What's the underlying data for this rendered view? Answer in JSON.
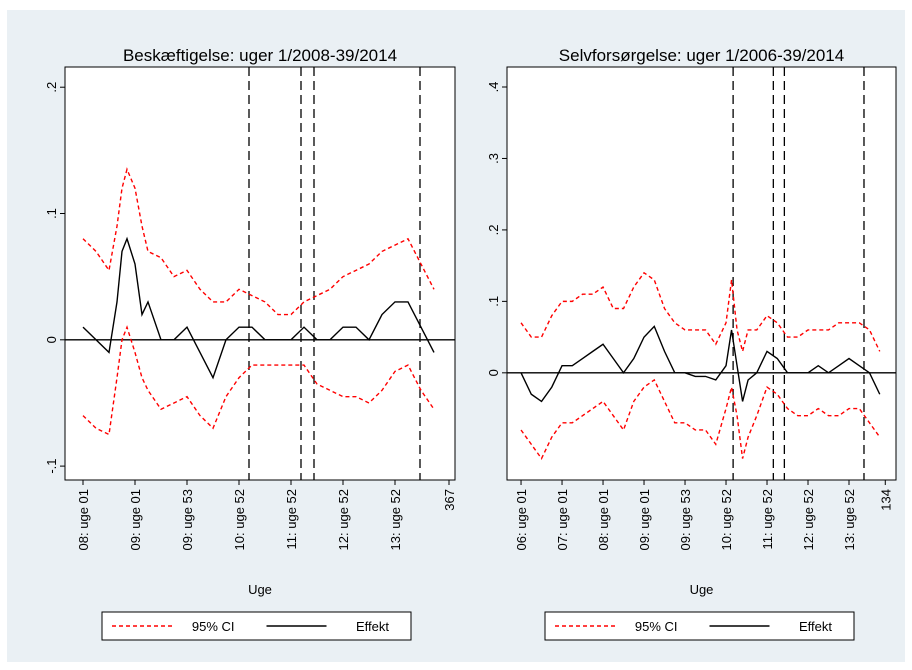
{
  "chart_data": [
    {
      "type": "line",
      "title": "Beskæftigelse: uger 1/2008-39/2014",
      "x_label": "Uge",
      "x": [
        1,
        14,
        27,
        35,
        40,
        45,
        53,
        60,
        66,
        79,
        92,
        105,
        118,
        131,
        144,
        157,
        170,
        183,
        196,
        209,
        222,
        235,
        248,
        261,
        274,
        287,
        300,
        313,
        326,
        339,
        352
      ],
      "series": [
        {
          "name": "95% CI",
          "color": "#ff0000",
          "dashed": true,
          "upper": [
            0.08,
            0.07,
            0.055,
            0.09,
            0.12,
            0.135,
            0.12,
            0.09,
            0.07,
            0.065,
            0.05,
            0.055,
            0.04,
            0.03,
            0.03,
            0.04,
            0.035,
            0.03,
            0.02,
            0.02,
            0.03,
            0.035,
            0.04,
            0.05,
            0.055,
            0.06,
            0.07,
            0.075,
            0.08,
            0.06,
            0.04
          ],
          "lower": [
            -0.06,
            -0.07,
            -0.075,
            -0.03,
            0,
            0.01,
            -0.01,
            -0.03,
            -0.04,
            -0.055,
            -0.05,
            -0.045,
            -0.06,
            -0.07,
            -0.045,
            -0.03,
            -0.02,
            -0.02,
            -0.02,
            -0.02,
            -0.02,
            -0.035,
            -0.04,
            -0.045,
            -0.045,
            -0.05,
            -0.04,
            -0.025,
            -0.02,
            -0.04,
            -0.055
          ]
        },
        {
          "name": "Effekt",
          "color": "#000000",
          "dashed": false,
          "values": [
            0.01,
            0,
            -0.01,
            0.03,
            0.07,
            0.08,
            0.06,
            0.02,
            0.03,
            0,
            0,
            0.01,
            -0.01,
            -0.03,
            0,
            0.01,
            0.01,
            0,
            0,
            0,
            0.01,
            0,
            0,
            0.01,
            0.01,
            0,
            0.02,
            0.03,
            0.03,
            0.01,
            -0.01
          ]
        }
      ],
      "xlim": [
        -17,
        373
      ],
      "ylim": [
        -0.111,
        0.216
      ],
      "xticks": [
        {
          "value": 1,
          "label": "08: uge 01"
        },
        {
          "value": 53,
          "label": "09: uge 01"
        },
        {
          "value": 105,
          "label": "09: uge 53"
        },
        {
          "value": 157,
          "label": "10: uge 52"
        },
        {
          "value": 209,
          "label": "11: uge 52"
        },
        {
          "value": 261,
          "label": "12: uge 52"
        },
        {
          "value": 313,
          "label": "13: uge 52"
        },
        367
      ],
      "yticks": [
        {
          "value": -0.1,
          "label": "-.1"
        },
        0,
        {
          "value": 0.1,
          "label": ".1"
        },
        {
          "value": 0.2,
          "label": ".2"
        }
      ],
      "hline": 0,
      "vlines": [
        167,
        219,
        232,
        338
      ]
    },
    {
      "type": "line",
      "title": "Selvforsørgelse: uger 1/2006-39/2014",
      "x_label": "Uge",
      "x": [
        1,
        14,
        27,
        40,
        53,
        66,
        79,
        92,
        105,
        118,
        131,
        144,
        157,
        170,
        183,
        196,
        209,
        222,
        235,
        248,
        261,
        268,
        275,
        282,
        289,
        300,
        313,
        326,
        339,
        352,
        365,
        378,
        391,
        404,
        417,
        430,
        443,
        456
      ],
      "series": [
        {
          "name": "95% CI",
          "color": "#ff0000",
          "dashed": true,
          "upper": [
            0.07,
            0.05,
            0.05,
            0.08,
            0.1,
            0.1,
            0.11,
            0.11,
            0.12,
            0.09,
            0.09,
            0.12,
            0.14,
            0.13,
            0.09,
            0.07,
            0.06,
            0.06,
            0.06,
            0.04,
            0.07,
            0.13,
            0.06,
            0.03,
            0.06,
            0.06,
            0.08,
            0.07,
            0.05,
            0.05,
            0.06,
            0.06,
            0.06,
            0.07,
            0.07,
            0.07,
            0.06,
            0.03
          ],
          "lower": [
            -0.08,
            -0.1,
            -0.12,
            -0.09,
            -0.07,
            -0.07,
            -0.06,
            -0.05,
            -0.04,
            -0.06,
            -0.08,
            -0.04,
            -0.02,
            -0.01,
            -0.04,
            -0.07,
            -0.07,
            -0.08,
            -0.08,
            -0.1,
            -0.05,
            -0.02,
            -0.06,
            -0.12,
            -0.09,
            -0.06,
            -0.02,
            -0.03,
            -0.05,
            -0.06,
            -0.06,
            -0.05,
            -0.06,
            -0.06,
            -0.05,
            -0.05,
            -0.07,
            -0.09
          ]
        },
        {
          "name": "Effekt",
          "color": "#000000",
          "dashed": false,
          "values": [
            0,
            -0.03,
            -0.04,
            -0.02,
            0.01,
            0.01,
            0.02,
            0.03,
            0.04,
            0.02,
            0,
            0.02,
            0.05,
            0.065,
            0.03,
            0,
            0,
            -0.005,
            -0.005,
            -0.01,
            0.01,
            0.06,
            0.01,
            -0.04,
            -0.01,
            0,
            0.03,
            0.02,
            0,
            0,
            0,
            0.01,
            0,
            0.01,
            0.02,
            0.01,
            0,
            -0.03
          ]
        }
      ],
      "xlim": [
        -16.8,
        476.6
      ],
      "ylim": [
        -0.15,
        0.428
      ],
      "xticks": [
        {
          "value": 1,
          "label": "06: uge 01"
        },
        {
          "value": 53,
          "label": "07: uge 01"
        },
        {
          "value": 105,
          "label": "08: uge 01"
        },
        {
          "value": 157,
          "label": "09: uge 01"
        },
        {
          "value": 209,
          "label": "09: uge 53"
        },
        {
          "value": 261,
          "label": "10: uge 52"
        },
        {
          "value": 313,
          "label": "11: uge 52"
        },
        {
          "value": 365,
          "label": "12: uge 52"
        },
        {
          "value": 417,
          "label": "13: uge 52"
        },
        {
          "value": 463,
          "label": "134"
        }
      ],
      "yticks": [
        0,
        {
          "value": 0.1,
          "label": ".1"
        },
        {
          "value": 0.2,
          "label": ".2"
        },
        {
          "value": 0.3,
          "label": ".3"
        },
        {
          "value": 0.4,
          "label": ".4"
        }
      ],
      "hline": 0,
      "vlines": [
        270,
        321,
        335,
        436
      ]
    }
  ]
}
